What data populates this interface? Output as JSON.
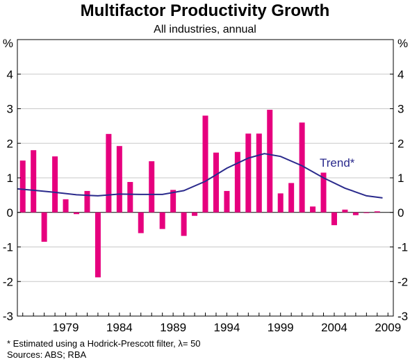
{
  "header": {
    "title": "Multifactor Productivity Growth",
    "subtitle": "All industries, annual"
  },
  "footnotes": {
    "estimate_note": "*  Estimated using a Hodrick-Prescott filter,  λ= 50",
    "sources": "Sources: ABS; RBA"
  },
  "chart_data": {
    "type": "bar",
    "y_unit_label": "%",
    "ylim": [
      -3,
      5
    ],
    "y_ticks": [
      "-3",
      "-2",
      "-1",
      "0",
      "1",
      "2",
      "3",
      "4"
    ],
    "x_tick_labels": [
      "1979",
      "1984",
      "1989",
      "1994",
      "1999",
      "2004",
      "2009"
    ],
    "x_tick_years": [
      1979,
      1984,
      1989,
      1994,
      1999,
      2004,
      2009
    ],
    "grid": true,
    "colors": {
      "bars": "#e6007e",
      "trend": "#2a2a8c"
    },
    "series": [
      {
        "type": "bar",
        "x": [
          1975,
          1976,
          1977,
          1978,
          1979,
          1980,
          1981,
          1982,
          1983,
          1984,
          1985,
          1986,
          1987,
          1988,
          1989,
          1990,
          1991,
          1992,
          1993,
          1994,
          1995,
          1996,
          1997,
          1998,
          1999,
          2000,
          2001,
          2002,
          2003,
          2004,
          2005,
          2006,
          2007,
          2008
        ],
        "values": [
          1.5,
          1.8,
          -0.85,
          1.62,
          0.38,
          -0.05,
          0.62,
          -1.88,
          2.27,
          1.92,
          0.88,
          -0.6,
          1.48,
          -0.48,
          0.65,
          -0.68,
          -0.1,
          2.8,
          1.73,
          0.62,
          1.75,
          2.28,
          2.28,
          2.97,
          0.55,
          0.85,
          2.6,
          0.17,
          1.15,
          -0.37,
          0.08,
          -0.08,
          0.0,
          0.03
        ]
      },
      {
        "type": "line",
        "name": "Trend*",
        "x": [
          1974.5,
          1976,
          1978,
          1980,
          1982,
          1984,
          1986,
          1988,
          1990,
          1992,
          1994,
          1996,
          1997.5,
          1999,
          2001,
          2003,
          2005,
          2007,
          2008.5
        ],
        "values": [
          0.68,
          0.64,
          0.58,
          0.51,
          0.48,
          0.53,
          0.52,
          0.52,
          0.63,
          0.9,
          1.28,
          1.57,
          1.7,
          1.62,
          1.35,
          1.0,
          0.7,
          0.48,
          0.42
        ]
      }
    ]
  }
}
